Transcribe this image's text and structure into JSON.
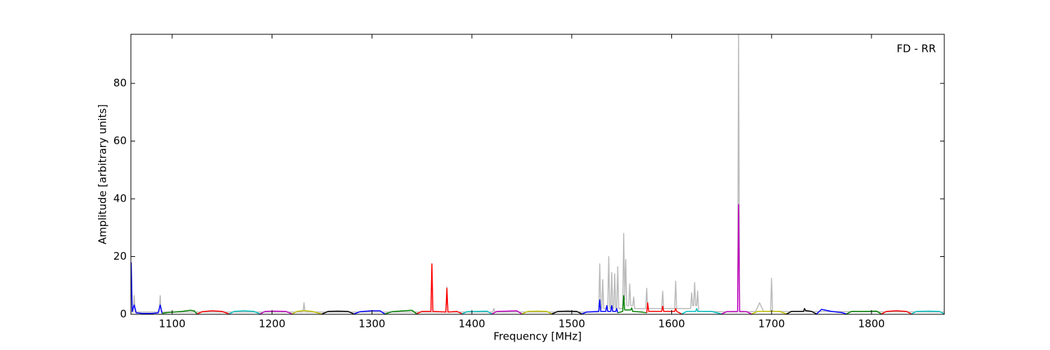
{
  "chart_data": {
    "type": "line",
    "xlabel": "Frequency [MHz]",
    "ylabel": "Amplitude [arbitrary units]",
    "annotation": "FD - RR",
    "xlim": [
      1058.7,
      1872.9
    ],
    "ylim": [
      0,
      97
    ],
    "xticks": [
      1100,
      1200,
      1300,
      1400,
      1500,
      1600,
      1700,
      1800
    ],
    "yticks": [
      0,
      20,
      40,
      60,
      80
    ],
    "series": [
      {
        "color": "#bbbbbb",
        "x": [
          1059,
          1061,
          1062,
          1063,
          1087,
          1088,
          1089,
          1231,
          1232,
          1233,
          1374,
          1375,
          1376,
          1421,
          1422,
          1423,
          1527,
          1528,
          1529,
          1530,
          1531,
          1532,
          1536,
          1537,
          1538,
          1539,
          1540,
          1541,
          1542,
          1543,
          1544,
          1545,
          1546,
          1547,
          1551,
          1552,
          1553,
          1554,
          1555,
          1557,
          1558,
          1559,
          1561,
          1562,
          1563,
          1574,
          1575,
          1576,
          1590,
          1591,
          1592,
          1603,
          1604,
          1605,
          1619,
          1620,
          1621,
          1622,
          1623,
          1624,
          1625,
          1626,
          1627,
          1666,
          1667,
          1668,
          1684,
          1688,
          1692,
          1699,
          1700,
          1701,
          1873
        ],
        "values": [
          0.8,
          0.8,
          6.5,
          0.8,
          0.8,
          6.5,
          0.8,
          0.8,
          4,
          0.8,
          0.8,
          9.5,
          0.8,
          0.8,
          2,
          0.8,
          0.8,
          17.5,
          2,
          2,
          12,
          2,
          2,
          20,
          2,
          2,
          14.5,
          2,
          2,
          14,
          2,
          2,
          16.5,
          2,
          2,
          28,
          5,
          19,
          3,
          3,
          10.5,
          3,
          3,
          6,
          2,
          2,
          9,
          2,
          2,
          8,
          2,
          2,
          11.5,
          2,
          2,
          7.5,
          3,
          3,
          11,
          3,
          3,
          8,
          1,
          0.8,
          97,
          0.8,
          1,
          4,
          1,
          1,
          12.5,
          1,
          0.8
        ]
      },
      {
        "color": "#0000ff",
        "x": [
          1059,
          1060,
          1062,
          1064,
          1070,
          1080,
          1086,
          1088,
          1090
        ],
        "values": [
          18,
          1,
          3.2,
          0.5,
          0.3,
          0.3,
          0.5,
          3.2,
          0.3
        ]
      },
      {
        "color": "#008000",
        "x": [
          1090,
          1095,
          1110,
          1118,
          1122,
          1125
        ],
        "values": [
          0.3,
          0.6,
          1,
          1.4,
          1.2,
          0.1
        ]
      },
      {
        "color": "#ff0000",
        "x": [
          1125,
          1130,
          1140,
          1150,
          1157
        ],
        "values": [
          0.1,
          0.9,
          1.2,
          1,
          0.1
        ]
      },
      {
        "color": "#00bfbf",
        "x": [
          1157,
          1162,
          1172,
          1182,
          1188
        ],
        "values": [
          0.1,
          1,
          1.2,
          1,
          0.1
        ]
      },
      {
        "color": "#bf00bf",
        "x": [
          1188,
          1193,
          1203,
          1214,
          1220
        ],
        "values": [
          0.1,
          1,
          1.1,
          1,
          0.1
        ]
      },
      {
        "color": "#bfbf00",
        "x": [
          1220,
          1225,
          1232,
          1240,
          1250
        ],
        "values": [
          0.1,
          1,
          1.3,
          1,
          0.1
        ]
      },
      {
        "color": "#000000",
        "x": [
          1250,
          1256,
          1266,
          1276,
          1282
        ],
        "values": [
          0.1,
          1,
          1.1,
          1,
          0.1
        ]
      },
      {
        "color": "#0000ff",
        "x": [
          1282,
          1288,
          1300,
          1308,
          1313
        ],
        "values": [
          0.1,
          0.9,
          1.2,
          1.2,
          0.1
        ]
      },
      {
        "color": "#008000",
        "x": [
          1313,
          1320,
          1332,
          1340,
          1345
        ],
        "values": [
          0.1,
          0.9,
          1.2,
          1.4,
          0.1
        ]
      },
      {
        "color": "#ff0000",
        "x": [
          1345,
          1350,
          1359,
          1360,
          1361,
          1374,
          1375,
          1376,
          1385,
          1390
        ],
        "values": [
          0.2,
          1,
          1,
          17.5,
          1,
          0.8,
          9,
          0.8,
          1,
          0.2
        ]
      },
      {
        "color": "#00bfbf",
        "x": [
          1390,
          1395,
          1405,
          1415,
          1420
        ],
        "values": [
          0.1,
          0.9,
          1,
          1.1,
          0.1
        ]
      },
      {
        "color": "#bf00bf",
        "x": [
          1420,
          1425,
          1435,
          1445,
          1450
        ],
        "values": [
          0.1,
          1,
          1.1,
          1.2,
          0.1
        ]
      },
      {
        "color": "#bfbf00",
        "x": [
          1450,
          1456,
          1466,
          1475,
          1480
        ],
        "values": [
          0.1,
          1,
          1.1,
          1,
          0.1
        ]
      },
      {
        "color": "#000000",
        "x": [
          1480,
          1486,
          1496,
          1505,
          1510
        ],
        "values": [
          0.1,
          1,
          1.1,
          1,
          0.1
        ]
      },
      {
        "color": "#0000ff",
        "x": [
          1510,
          1515,
          1527,
          1528,
          1529,
          1534,
          1535,
          1536,
          1539,
          1540,
          1541,
          1544,
          1545,
          1546
        ],
        "values": [
          0.1,
          0.8,
          1,
          5,
          1,
          1,
          3,
          1,
          1,
          3,
          1,
          1,
          2,
          0.5
        ]
      },
      {
        "color": "#008000",
        "x": [
          1546,
          1551,
          1552,
          1553,
          1559,
          1560,
          1561,
          1570,
          1575
        ],
        "values": [
          0.5,
          1,
          6.5,
          1.5,
          1.5,
          2.2,
          1,
          0.8,
          0.5
        ]
      },
      {
        "color": "#ff0000",
        "x": [
          1575,
          1576,
          1577,
          1585,
          1590,
          1591,
          1592,
          1603,
          1604,
          1605,
          1610
        ],
        "values": [
          0.5,
          4,
          1,
          1,
          1,
          2.8,
          1,
          1,
          2,
          1,
          0.1
        ]
      },
      {
        "color": "#00bfbf",
        "x": [
          1610,
          1615,
          1624,
          1625,
          1626,
          1640,
          1650
        ],
        "values": [
          0.1,
          1,
          1,
          2,
          1,
          1,
          0.1
        ]
      },
      {
        "color": "#bf00bf",
        "x": [
          1650,
          1655,
          1666,
          1667,
          1668,
          1675,
          1680
        ],
        "values": [
          0.1,
          0.9,
          1,
          38,
          1,
          0.9,
          0.1
        ]
      },
      {
        "color": "#bfbf00",
        "x": [
          1680,
          1686,
          1696,
          1708,
          1715
        ],
        "values": [
          0.1,
          1,
          1,
          1,
          0.1
        ]
      },
      {
        "color": "#000000",
        "x": [
          1715,
          1720,
          1732,
          1733,
          1734,
          1740,
          1745
        ],
        "values": [
          0.1,
          1,
          1,
          2,
          1.3,
          1,
          0.1
        ]
      },
      {
        "color": "#0000ff",
        "x": [
          1745,
          1750,
          1760,
          1770,
          1775
        ],
        "values": [
          0.1,
          1.7,
          1,
          0.6,
          0.1
        ]
      },
      {
        "color": "#008000",
        "x": [
          1775,
          1780,
          1795,
          1805,
          1810
        ],
        "values": [
          0.1,
          1,
          1,
          1.1,
          0.1
        ]
      },
      {
        "color": "#ff0000",
        "x": [
          1810,
          1815,
          1825,
          1835,
          1840
        ],
        "values": [
          0.1,
          1,
          1.2,
          1,
          0.1
        ]
      },
      {
        "color": "#00bfbf",
        "x": [
          1840,
          1845,
          1858,
          1868,
          1873
        ],
        "values": [
          0.1,
          1,
          1.1,
          1,
          0.1
        ]
      }
    ]
  }
}
